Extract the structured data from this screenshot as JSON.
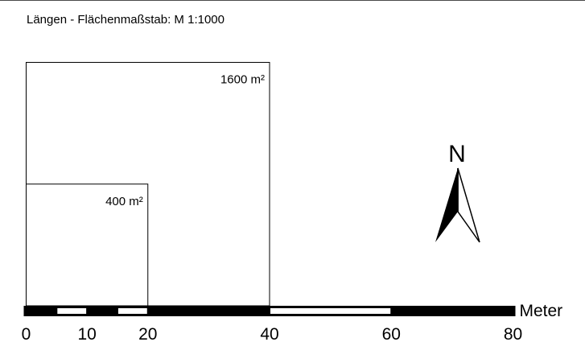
{
  "map": {
    "title": "Längen - Flächenmaßstab: M 1:1000",
    "areas": [
      {
        "label": "1600 m²",
        "side_m": 40
      },
      {
        "label": "400 m²",
        "side_m": 20
      }
    ],
    "scale_bar": {
      "unit_label": "Meter",
      "max_m": 80,
      "ticks": [
        0,
        10,
        20,
        40,
        60,
        80
      ],
      "segments_m": [
        {
          "from": 0,
          "to": 5,
          "fill": "black"
        },
        {
          "from": 5,
          "to": 10,
          "fill": "white"
        },
        {
          "from": 10,
          "to": 15,
          "fill": "black"
        },
        {
          "from": 15,
          "to": 20,
          "fill": "white"
        },
        {
          "from": 20,
          "to": 40,
          "fill": "black"
        },
        {
          "from": 40,
          "to": 60,
          "fill": "white"
        },
        {
          "from": 60,
          "to": 80,
          "fill": "black"
        }
      ]
    },
    "north_arrow": {
      "label": "N"
    },
    "colors": {
      "ink": "#000000",
      "paper": "#ffffff",
      "frame": "#4a4a4a"
    }
  }
}
